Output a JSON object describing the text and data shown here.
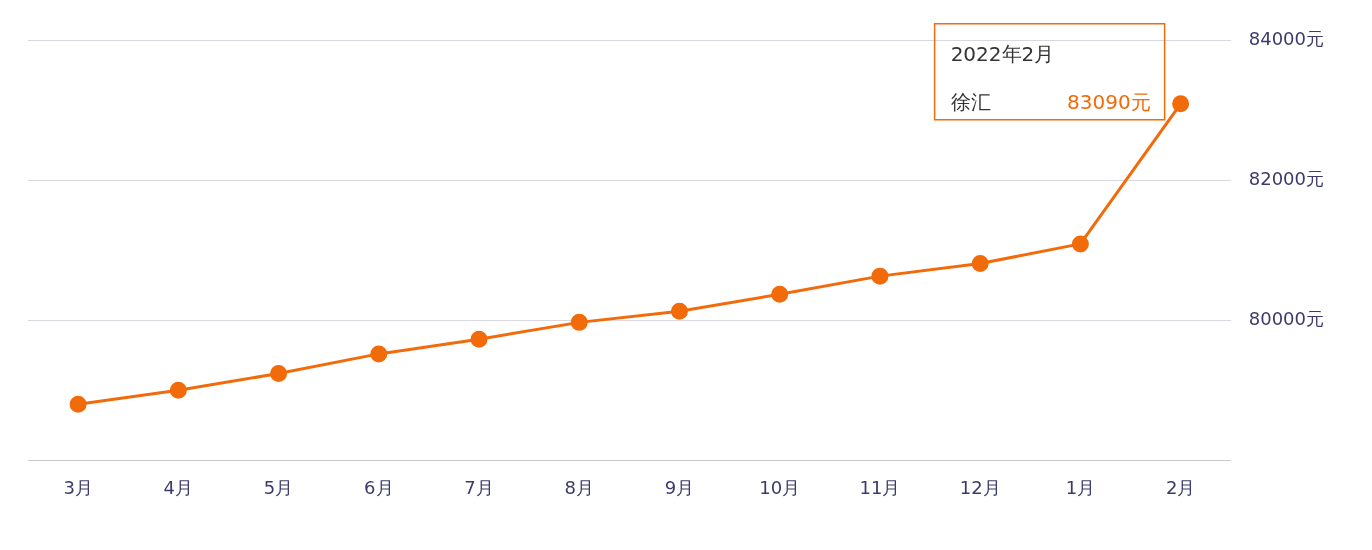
{
  "chart_data": {
    "type": "line",
    "categories": [
      "3月",
      "4月",
      "5月",
      "6月",
      "7月",
      "8月",
      "9月",
      "10月",
      "11月",
      "12月",
      "1月",
      "2月"
    ],
    "series": [
      {
        "name": "徐汇",
        "color": "#f26b0a",
        "values": [
          78800,
          79000,
          79240,
          79520,
          79730,
          79970,
          80130,
          80370,
          80630,
          80810,
          81090,
          83090
        ],
        "value_labels": [
          null,
          null,
          null,
          null,
          null,
          null,
          null,
          null,
          null,
          null,
          null,
          "83090元"
        ]
      }
    ],
    "ylim": [
      78000,
      84000
    ],
    "yticks": [
      {
        "value": 80000,
        "label": "80000元"
      },
      {
        "value": 82000,
        "label": "82000元"
      },
      {
        "value": 84000,
        "label": "84000元"
      }
    ],
    "annotations": [
      "2022年2月"
    ],
    "grid": "y",
    "legend": false,
    "marker": "circle",
    "line_style": "solid"
  }
}
